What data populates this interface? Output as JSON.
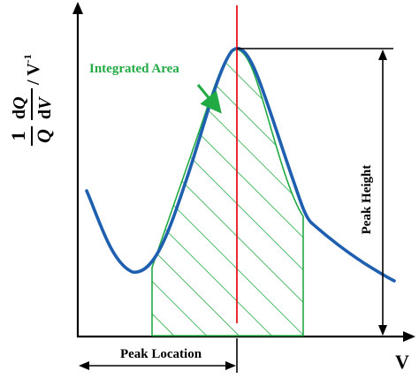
{
  "ylabel": {
    "one": "1",
    "Q": "Q",
    "dQ_d": "d",
    "dQ_Q": "Q",
    "dV_d": "d",
    "dV_V": "V",
    "unit": "/ V",
    "unit_exp": "-1"
  },
  "xlabel": "V",
  "annotations": {
    "integrated_area": "Integrated Area",
    "peak_height": "Peak Height",
    "peak_location": "Peak Location"
  },
  "colors": {
    "curve": "#1f5fb0",
    "area": "#22aa44",
    "annotation_text": "#22aa44",
    "peak_line": "#e8141c",
    "axes": "#000000"
  }
}
